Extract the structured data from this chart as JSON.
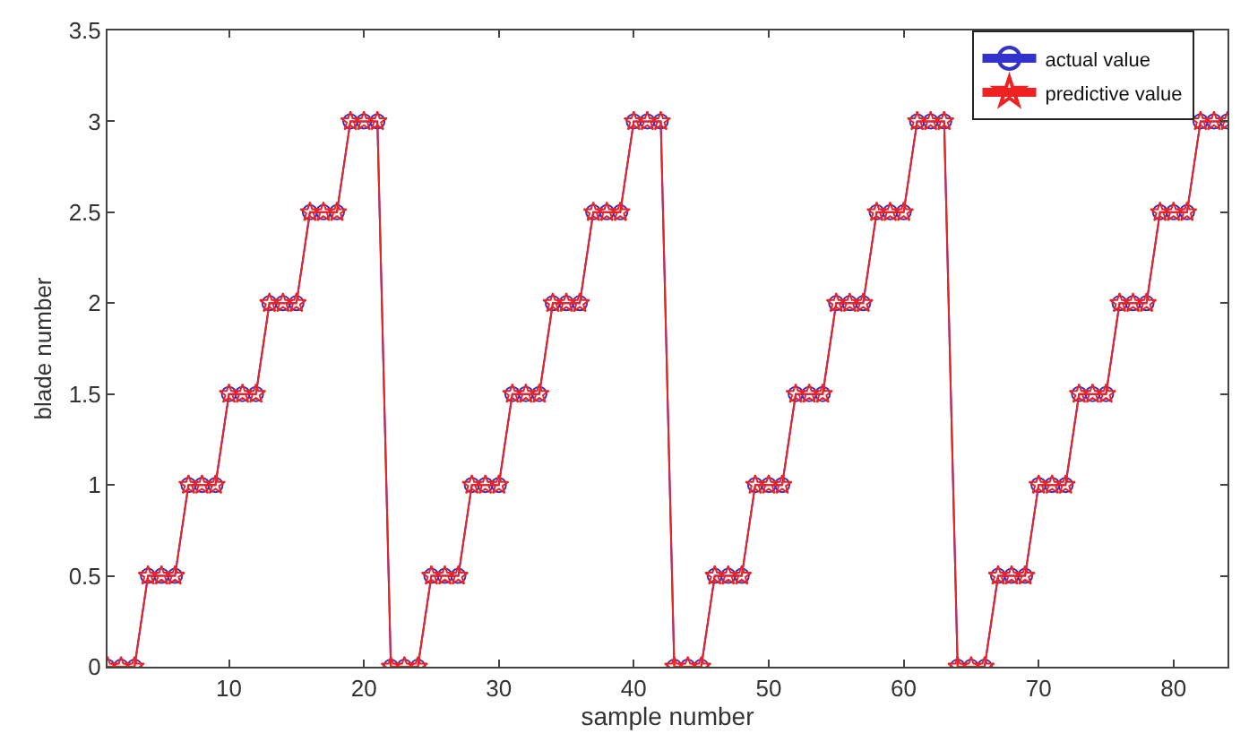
{
  "chart_data": {
    "type": "line",
    "xlabel": "sample number",
    "ylabel": "blade number",
    "x": [
      1,
      2,
      3,
      4,
      5,
      6,
      7,
      8,
      9,
      10,
      11,
      12,
      13,
      14,
      15,
      16,
      17,
      18,
      19,
      20,
      21,
      22,
      23,
      24,
      25,
      26,
      27,
      28,
      29,
      30,
      31,
      32,
      33,
      34,
      35,
      36,
      37,
      38,
      39,
      40,
      41,
      42,
      43,
      44,
      45,
      46,
      47,
      48,
      49,
      50,
      51,
      52,
      53,
      54,
      55,
      56,
      57,
      58,
      59,
      60,
      61,
      62,
      63,
      64,
      65,
      66,
      67,
      68,
      69,
      70,
      71,
      72,
      73,
      74,
      75,
      76,
      77,
      78,
      79,
      80,
      81,
      82,
      83,
      84
    ],
    "series": [
      {
        "name": "actual value",
        "color": "#3333cc",
        "marker": "circle",
        "values": [
          0,
          0,
          0,
          0.5,
          0.5,
          0.5,
          1,
          1,
          1,
          1.5,
          1.5,
          1.5,
          2,
          2,
          2,
          2.5,
          2.5,
          2.5,
          3,
          3,
          3,
          0,
          0,
          0,
          0.5,
          0.5,
          0.5,
          1,
          1,
          1,
          1.5,
          1.5,
          1.5,
          2,
          2,
          2,
          2.5,
          2.5,
          2.5,
          3,
          3,
          3,
          0,
          0,
          0,
          0.5,
          0.5,
          0.5,
          1,
          1,
          1,
          1.5,
          1.5,
          1.5,
          2,
          2,
          2,
          2.5,
          2.5,
          2.5,
          3,
          3,
          3,
          0,
          0,
          0,
          0.5,
          0.5,
          0.5,
          1,
          1,
          1,
          1.5,
          1.5,
          1.5,
          2,
          2,
          2,
          2.5,
          2.5,
          2.5,
          3,
          3,
          3
        ]
      },
      {
        "name": "predictive value",
        "color": "#ee2222",
        "marker": "star",
        "values": [
          0,
          0,
          0,
          0.5,
          0.5,
          0.5,
          1,
          1,
          1,
          1.5,
          1.5,
          1.5,
          2,
          2,
          2,
          2.5,
          2.5,
          2.5,
          3,
          3,
          3,
          0,
          0,
          0,
          0.5,
          0.5,
          0.5,
          1,
          1,
          1,
          1.5,
          1.5,
          1.5,
          2,
          2,
          2,
          2.5,
          2.5,
          2.5,
          3,
          3,
          3,
          0,
          0,
          0,
          0.5,
          0.5,
          0.5,
          1,
          1,
          1,
          1.5,
          1.5,
          1.5,
          2,
          2,
          2,
          2.5,
          2.5,
          2.5,
          3,
          3,
          3,
          0,
          0,
          0,
          0.5,
          0.5,
          0.5,
          1,
          1,
          1,
          1.5,
          1.5,
          1.5,
          2,
          2,
          2,
          2.5,
          2.5,
          2.5,
          3,
          3,
          3
        ]
      }
    ],
    "xlim": [
      1,
      84
    ],
    "xticks": [
      10,
      20,
      30,
      40,
      50,
      60,
      70,
      80
    ],
    "ylim": [
      0,
      3.5
    ],
    "yticks": [
      0,
      0.5,
      1,
      1.5,
      2,
      2.5,
      3,
      3.5
    ],
    "legend": "top right",
    "line_style": "solid"
  }
}
